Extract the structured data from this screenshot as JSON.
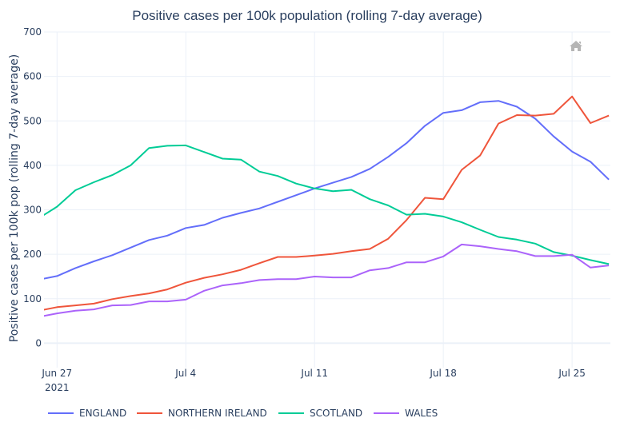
{
  "chart_data": {
    "type": "line",
    "title": "Positive cases per 100k population (rolling 7-day average)",
    "xlabel": "",
    "ylabel": "Positive cases per 100k pop (rolling 7-day average)",
    "ylim": [
      -55,
      700
    ],
    "xlim": [
      "2021-06-26T07:00",
      "2021-07-27T02:00"
    ],
    "grid": true,
    "legend_position": "bottom-left",
    "y_ticks": [
      0,
      100,
      200,
      300,
      400,
      500,
      600,
      700
    ],
    "x_ticks": [
      {
        "date": "2021-06-27",
        "label": "Jun 27",
        "sublabel": "2021"
      },
      {
        "date": "2021-07-04",
        "label": "Jul 4",
        "sublabel": ""
      },
      {
        "date": "2021-07-11",
        "label": "Jul 11",
        "sublabel": ""
      },
      {
        "date": "2021-07-18",
        "label": "Jul 18",
        "sublabel": ""
      },
      {
        "date": "2021-07-25",
        "label": "Jul 25",
        "sublabel": ""
      }
    ],
    "x": [
      "2021-06-26",
      "2021-06-27",
      "2021-06-28",
      "2021-06-29",
      "2021-06-30",
      "2021-07-01",
      "2021-07-02",
      "2021-07-03",
      "2021-07-04",
      "2021-07-05",
      "2021-07-06",
      "2021-07-07",
      "2021-07-08",
      "2021-07-09",
      "2021-07-10",
      "2021-07-11",
      "2021-07-12",
      "2021-07-13",
      "2021-07-14",
      "2021-07-15",
      "2021-07-16",
      "2021-07-17",
      "2021-07-18",
      "2021-07-19",
      "2021-07-20",
      "2021-07-21",
      "2021-07-22",
      "2021-07-23",
      "2021-07-24",
      "2021-07-25",
      "2021-07-26",
      "2021-07-27"
    ],
    "series": [
      {
        "name": "ENGLAND",
        "color": "#636efa",
        "values": [
          143,
          151,
          169,
          184,
          198,
          215,
          232,
          242,
          259,
          266,
          282,
          293,
          303,
          318,
          333,
          348,
          361,
          374,
          392,
          419,
          450,
          489,
          518,
          524,
          542,
          545,
          532,
          505,
          465,
          431,
          408,
          368
        ]
      },
      {
        "name": "NORTHERN IRELAND",
        "color": "#ef553b",
        "values": [
          73,
          81,
          85,
          89,
          99,
          106,
          112,
          121,
          136,
          147,
          155,
          165,
          180,
          194,
          194,
          197,
          201,
          207,
          212,
          235,
          277,
          327,
          324,
          390,
          422,
          494,
          513,
          512,
          516,
          555,
          495,
          512
        ]
      },
      {
        "name": "SCOTLAND",
        "color": "#00cc96",
        "values": [
          281,
          307,
          344,
          362,
          378,
          400,
          439,
          444,
          445,
          430,
          415,
          413,
          386,
          376,
          359,
          348,
          342,
          345,
          324,
          310,
          289,
          291,
          285,
          272,
          255,
          239,
          233,
          224,
          205,
          197,
          187,
          178
        ]
      },
      {
        "name": "WALES",
        "color": "#ab63fa",
        "values": [
          59,
          67,
          73,
          76,
          85,
          86,
          94,
          94,
          98,
          118,
          130,
          135,
          142,
          144,
          144,
          150,
          148,
          148,
          164,
          169,
          182,
          182,
          195,
          222,
          218,
          212,
          207,
          196,
          196,
          199,
          170,
          175
        ]
      }
    ]
  },
  "toolbar": {
    "home_icon": "home-icon"
  }
}
